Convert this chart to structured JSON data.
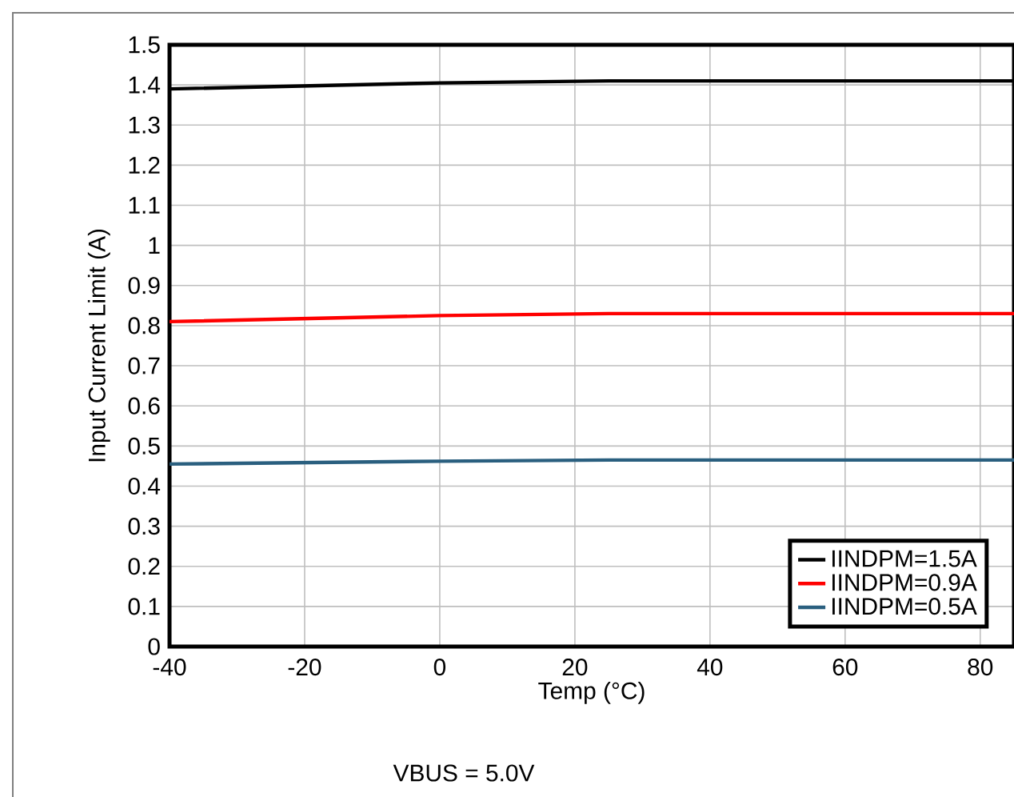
{
  "chart_data": {
    "type": "line",
    "xlabel": "Temp (°C)",
    "ylabel": "Input Current Limit (A)",
    "annotations": [
      "VBUS = 5.0V"
    ],
    "x": [
      -40,
      0,
      25,
      85
    ],
    "series": [
      {
        "name": "IINDPM=1.5A",
        "color": "#000000",
        "values": [
          1.39,
          1.405,
          1.41,
          1.41
        ]
      },
      {
        "name": "IINDPM=0.9A",
        "color": "#ff0000",
        "values": [
          0.81,
          0.825,
          0.83,
          0.83
        ]
      },
      {
        "name": "IINDPM=0.5A",
        "color": "#2a5f7f",
        "values": [
          0.455,
          0.462,
          0.465,
          0.465
        ]
      }
    ],
    "xlim": [
      -40,
      85
    ],
    "ylim": [
      0,
      1.5
    ],
    "xticks": [
      -40,
      -20,
      0,
      20,
      40,
      60,
      80
    ],
    "yticks": [
      0,
      0.1,
      0.2,
      0.3,
      0.4,
      0.5,
      0.6,
      0.7,
      0.8,
      0.9,
      1,
      1.1,
      1.2,
      1.3,
      1.4,
      1.5
    ],
    "grid": true,
    "legend": "bottom right",
    "line_style": "solid"
  }
}
